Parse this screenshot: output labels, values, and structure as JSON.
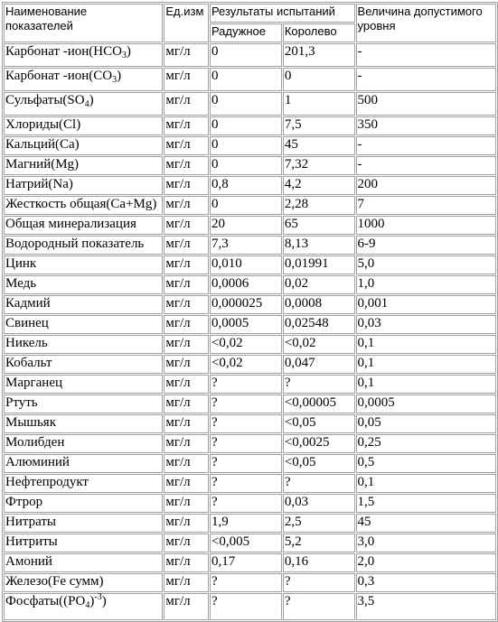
{
  "table": {
    "header": {
      "name_col_line1": "Наименование",
      "name_col_line2": "показателей",
      "unit_col": "Ед.изм",
      "results_col": "Результаты испытаний",
      "site1": "Радужное",
      "site2": "Королево",
      "limit_col_line1": "Величина допустимого",
      "limit_col_line2": "уровня"
    },
    "rows": [
      {
        "name": "Карбонат -ион(НСО",
        "sub": "3",
        "tail": ")",
        "unit": "мг/л",
        "r1": "0",
        "r2": "201,3",
        "limit": "-"
      },
      {
        "name": "Карбонат -ион(СО",
        "sub": "3",
        "tail": ")",
        "unit": "мг/л",
        "r1": "0",
        "r2": "0",
        "limit": "-"
      },
      {
        "name": "Сульфаты(SO",
        "sub": "4",
        "tail": ")",
        "unit": "мг/л",
        "r1": "0",
        "r2": "1",
        "limit": "500"
      },
      {
        "name": "Хлориды(Cl)",
        "unit": "мг/л",
        "r1": "0",
        "r2": "7,5",
        "limit": "350"
      },
      {
        "name": "Кальций(Ca)",
        "unit": "мг/л",
        "r1": "0",
        "r2": "45",
        "limit": "-"
      },
      {
        "name": "Магний(Mg)",
        "unit": "мг/л",
        "r1": "0",
        "r2": "7,32",
        "limit": "-"
      },
      {
        "name": "Натрий(Na)",
        "unit": "мг/л",
        "r1": "0,8",
        "r2": "4,2",
        "limit": "200"
      },
      {
        "name": "Жесткость общая(Ca+Mg)",
        "unit": "мг/л",
        "r1": "0",
        "r2": "2,28",
        "limit": "7"
      },
      {
        "name": "Общая минерализация",
        "unit": "мг/л",
        "r1": "20",
        "r2": "65",
        "limit": "1000"
      },
      {
        "name": "Водородный показатель",
        "unit": "мг/л",
        "r1": "7,3",
        "r2": "8,13",
        "limit": "6-9"
      },
      {
        "name": "Цинк",
        "unit": "мг/л",
        "r1": "0,010",
        "r2": "0,01991",
        "limit": "5,0"
      },
      {
        "name": "Медь",
        "unit": "мг/л",
        "r1": "0,0006",
        "r2": "0,02",
        "limit": "1,0"
      },
      {
        "name": "Кадмий",
        "unit": "мг/л",
        "r1": "0,000025",
        "r2": "0,0008",
        "limit": "0,001"
      },
      {
        "name": "Свинец",
        "unit": "мг/л",
        "r1": "0,0005",
        "r2": "0,02548",
        "limit": "0,03"
      },
      {
        "name": "Никель",
        "unit": "мг/л",
        "r1": "<0,02",
        "r2": "<0,02",
        "limit": "0,1"
      },
      {
        "name": "Кобальт",
        "unit": "мг/л",
        "r1": "<0,02",
        "r2": "0,047",
        "limit": "0,1"
      },
      {
        "name": "Марганец",
        "unit": "мг/л",
        "r1": "?",
        "r2": "?",
        "limit": "0,1"
      },
      {
        "name": "Ртуть",
        "unit": "мг/л",
        "r1": "?",
        "r2": "<0,00005",
        "limit": "0,0005"
      },
      {
        "name": "Мышьяк",
        "unit": "мг/л",
        "r1": "?",
        "r2": "<0,05",
        "limit": "0,05"
      },
      {
        "name": "Молибден",
        "unit": "мг/л",
        "r1": "?",
        "r2": "<0,0025",
        "limit": "0,25"
      },
      {
        "name": "Алюминий",
        "unit": "мг/л",
        "r1": "?",
        "r2": "<0,05",
        "limit": "0,5"
      },
      {
        "name": "Нефтепродукт",
        "unit": "мг/л",
        "r1": "?",
        "r2": "?",
        "limit": "0,1"
      },
      {
        "name": "Фтрор",
        "unit": "мг/л",
        "r1": "?",
        "r2": "0,03",
        "limit": "1,5"
      },
      {
        "name": "Нитраты",
        "unit": "мг/л",
        "r1": "1,9",
        "r2": "2,5",
        "limit": "45"
      },
      {
        "name": "Нитриты",
        "unit": "мг/л",
        "r1": "<0,005",
        "r2": "5,2",
        "limit": "3,0"
      },
      {
        "name": "Амоний",
        "unit": "мг/л",
        "r1": "0,17",
        "r2": "0,16",
        "limit": "2,0"
      },
      {
        "name": "Железо(Fe сумм)",
        "unit": "мг/л",
        "r1": "?",
        "r2": "?",
        "limit": "0,3"
      },
      {
        "name": "Фосфаты((PO",
        "sub": "4",
        "tail": ")",
        "sup": "-3",
        "tail2": ")",
        "unit": "мг/л",
        "r1": "?",
        "r2": "?",
        "limit": "3,5"
      }
    ]
  }
}
